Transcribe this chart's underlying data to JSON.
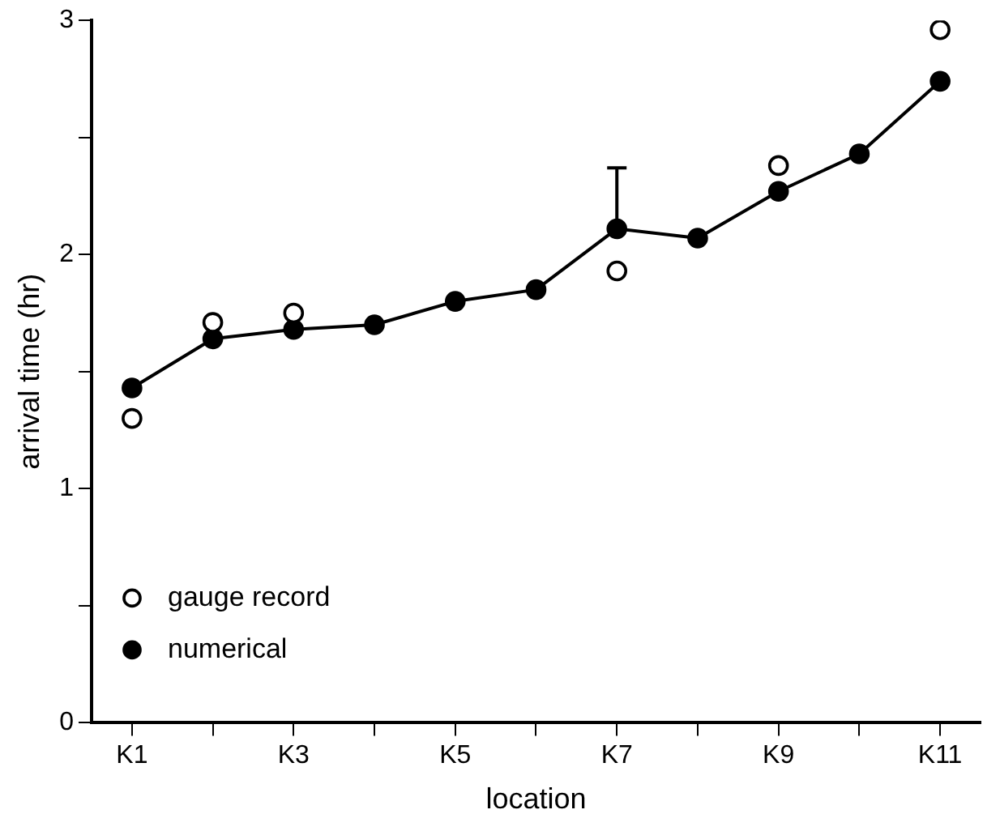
{
  "chart_data": {
    "type": "line",
    "xlabel": "location",
    "ylabel": "arrival time (hr)",
    "categories": [
      "K1",
      null,
      "K3",
      null,
      "K5",
      null,
      "K7",
      null,
      "K9",
      null,
      "K11"
    ],
    "ylim": [
      0,
      3
    ],
    "yticks": [
      0,
      {
        "value": 0.5,
        "label": null
      },
      1,
      {
        "value": 1.5,
        "label": null
      },
      2,
      {
        "value": 2.5,
        "label": null
      },
      3
    ],
    "grid": false,
    "legend": "bottom left",
    "series": [
      {
        "name": "gauge record",
        "type": "scatter",
        "marker": "circle",
        "color": "#000000",
        "values": [
          1.3,
          1.71,
          1.75,
          null,
          null,
          null,
          1.93,
          null,
          2.38,
          null,
          2.96
        ]
      },
      {
        "name": "numerical",
        "type": "line",
        "marker": "circle",
        "line_style": "solid",
        "color": "#000000",
        "values": [
          1.43,
          1.64,
          1.68,
          1.7,
          1.8,
          1.85,
          2.11,
          2.07,
          2.27,
          2.43,
          2.74
        ],
        "errors": [
          null,
          null,
          null,
          null,
          null,
          null,
          [
            2.11,
            2.37
          ],
          null,
          null,
          null,
          null
        ]
      }
    ]
  }
}
